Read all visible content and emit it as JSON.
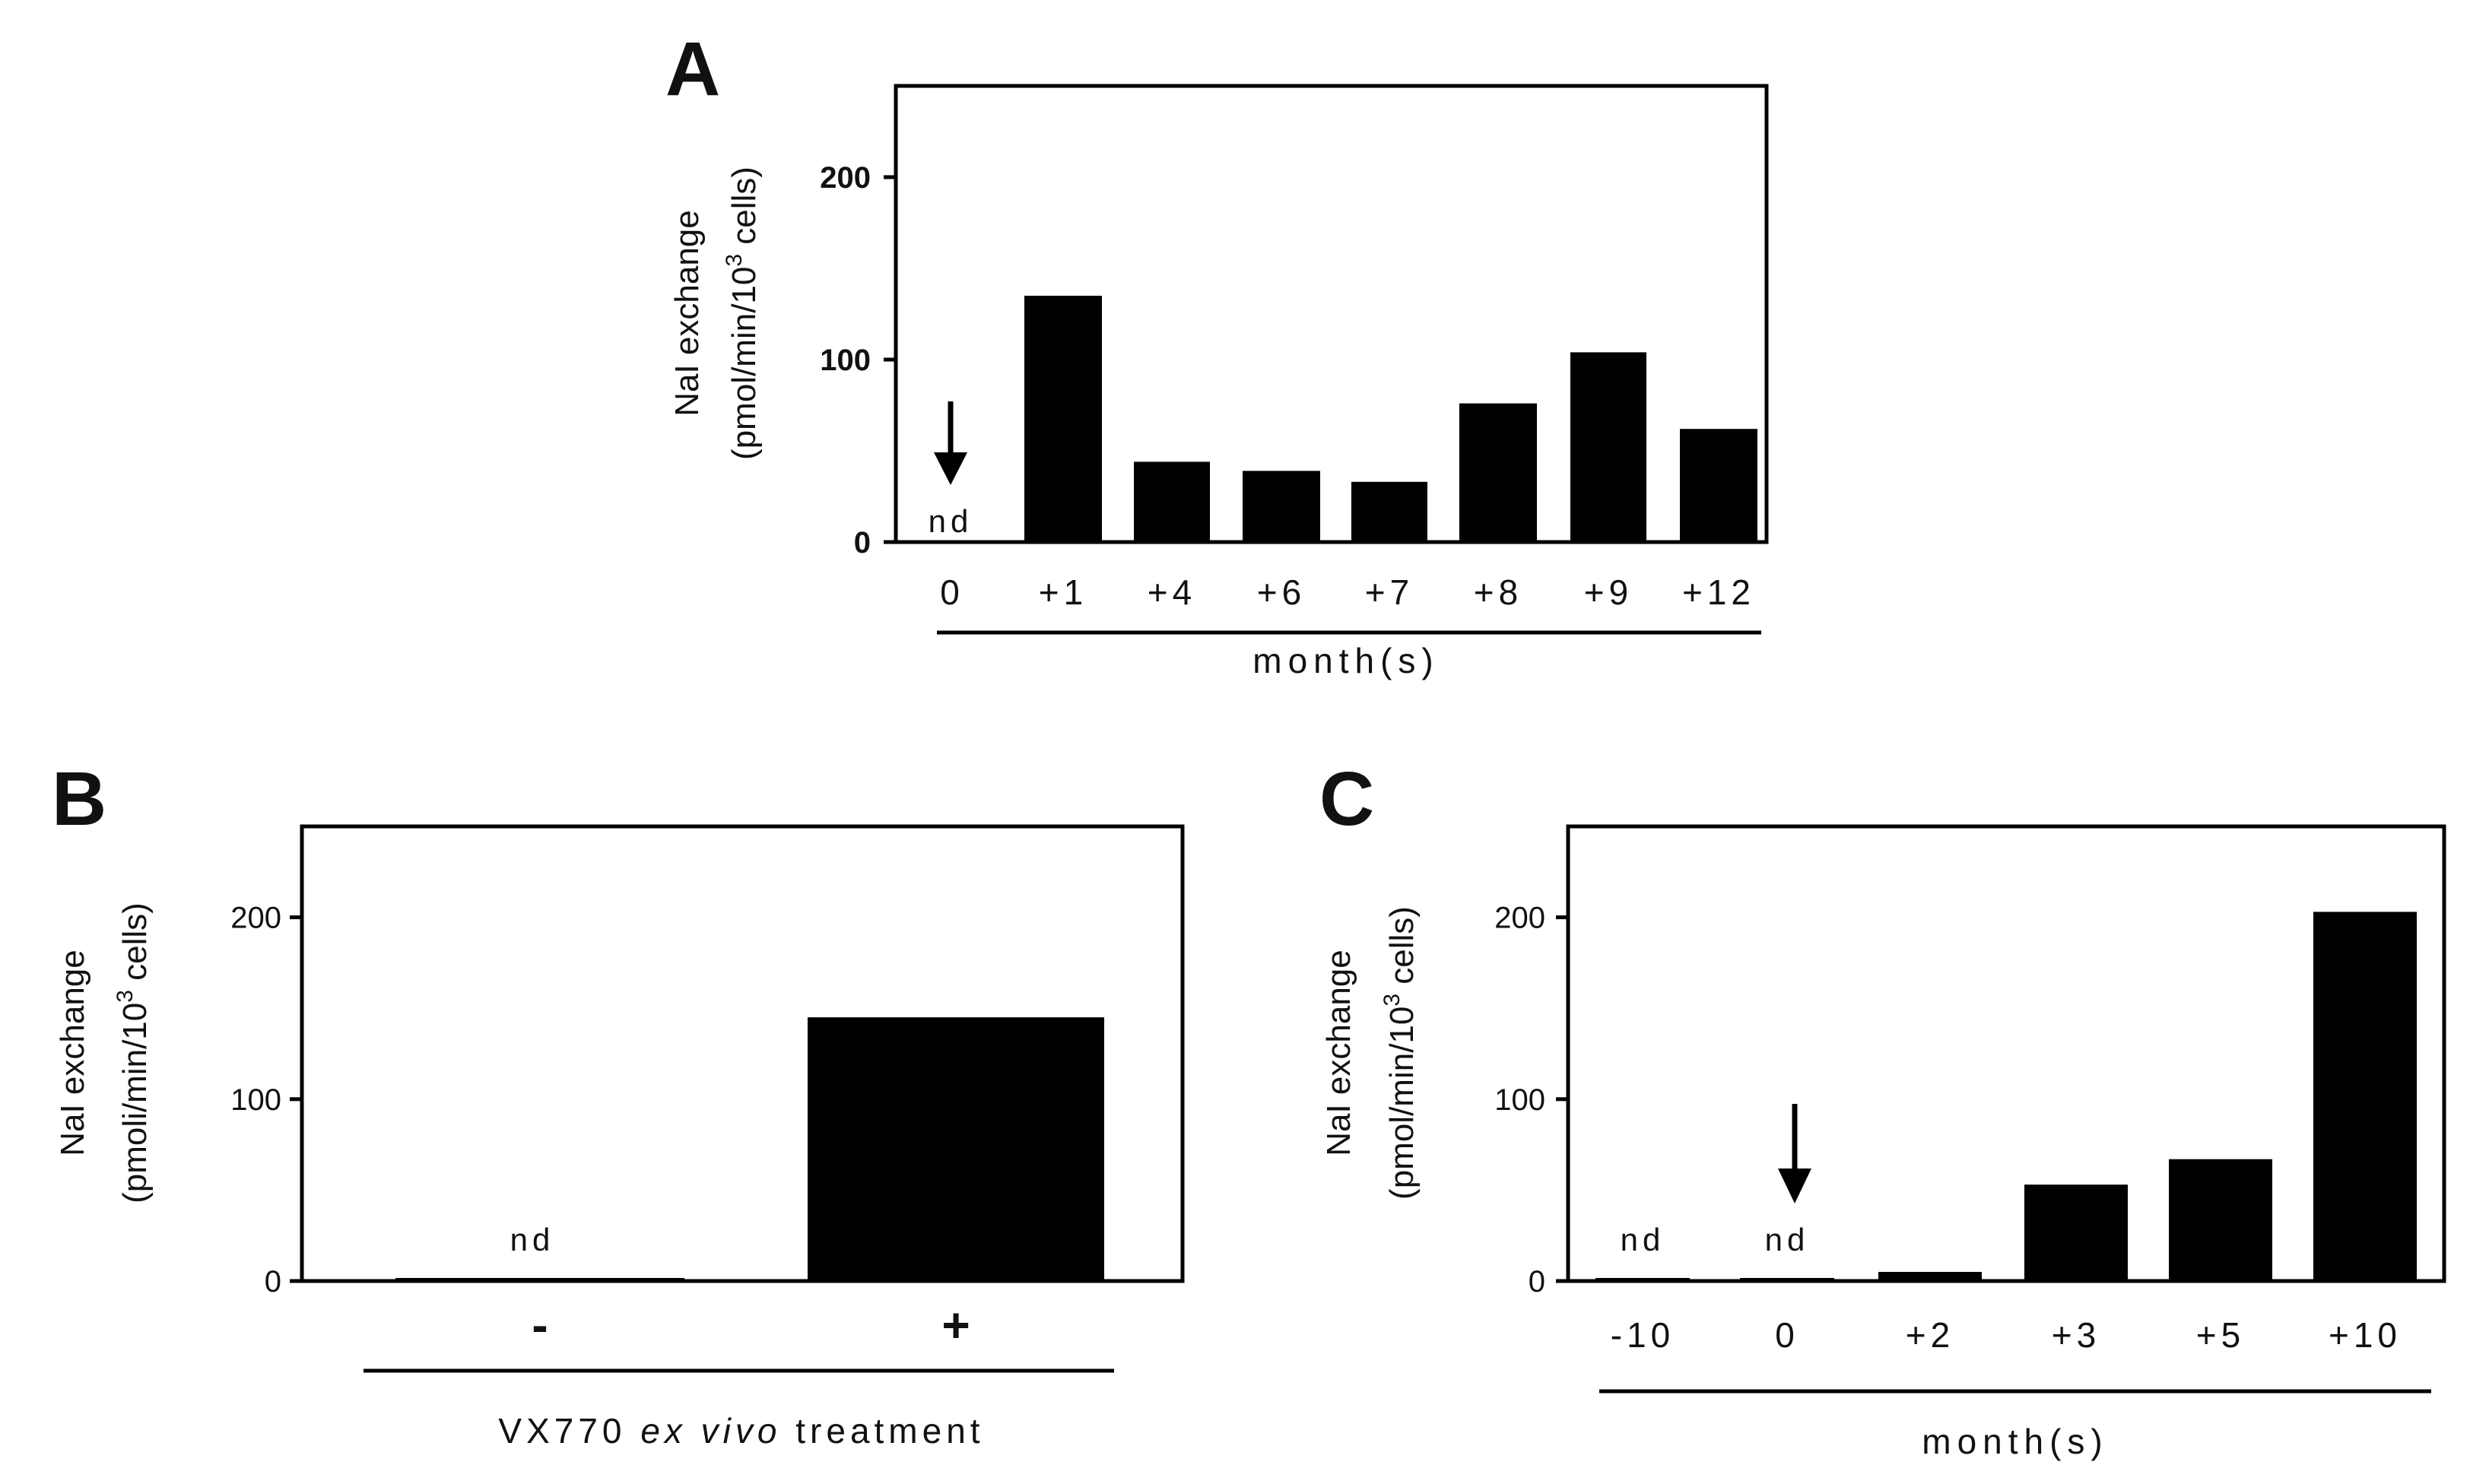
{
  "chart_data": [
    {
      "type": "bar",
      "panel": "A",
      "ylabel": "NaI exchange",
      "ylabel_units": "(pmol/min/10",
      "ylabel_exponent": "3",
      "ylabel_units_end": " cells)",
      "ylim": [
        0,
        250
      ],
      "yticks": [
        "0",
        "100",
        "200"
      ],
      "categories": [
        "0",
        "+1",
        "+4",
        "+6",
        "+7",
        "+8",
        "+9",
        "+12"
      ],
      "values": [
        0,
        135,
        44,
        39,
        33,
        76,
        104,
        62
      ],
      "nd_label": "nd",
      "arrow_at": "0",
      "xlabel": "month(s)"
    },
    {
      "type": "bar",
      "panel": "B",
      "ylabel": "NaI exchange",
      "ylabel_units": "(pmoli/min/10",
      "ylabel_exponent": "3",
      "ylabel_units_end": " cells)",
      "ylim": [
        0,
        250
      ],
      "yticks": [
        "0",
        "100",
        "200"
      ],
      "categories": [
        "-",
        "+"
      ],
      "values": [
        0,
        145
      ],
      "nd_label": "nd",
      "xlabel_parts": [
        "VX770 ",
        "ex vivo",
        " treatment"
      ]
    },
    {
      "type": "bar",
      "panel": "C",
      "ylabel": "NaI exchange",
      "ylabel_units": "(pmol/min/10",
      "ylabel_exponent": "3",
      "ylabel_units_end": " cells)",
      "ylim": [
        0,
        250
      ],
      "yticks": [
        "0",
        "100",
        "200"
      ],
      "categories": [
        "-10",
        "0",
        "+2",
        "+3",
        "+5",
        "+10"
      ],
      "values": [
        0,
        0,
        5,
        53,
        67,
        203
      ],
      "nd_labels": [
        "nd",
        "nd"
      ],
      "arrow_at": "0",
      "xlabel": "month(s)"
    }
  ]
}
